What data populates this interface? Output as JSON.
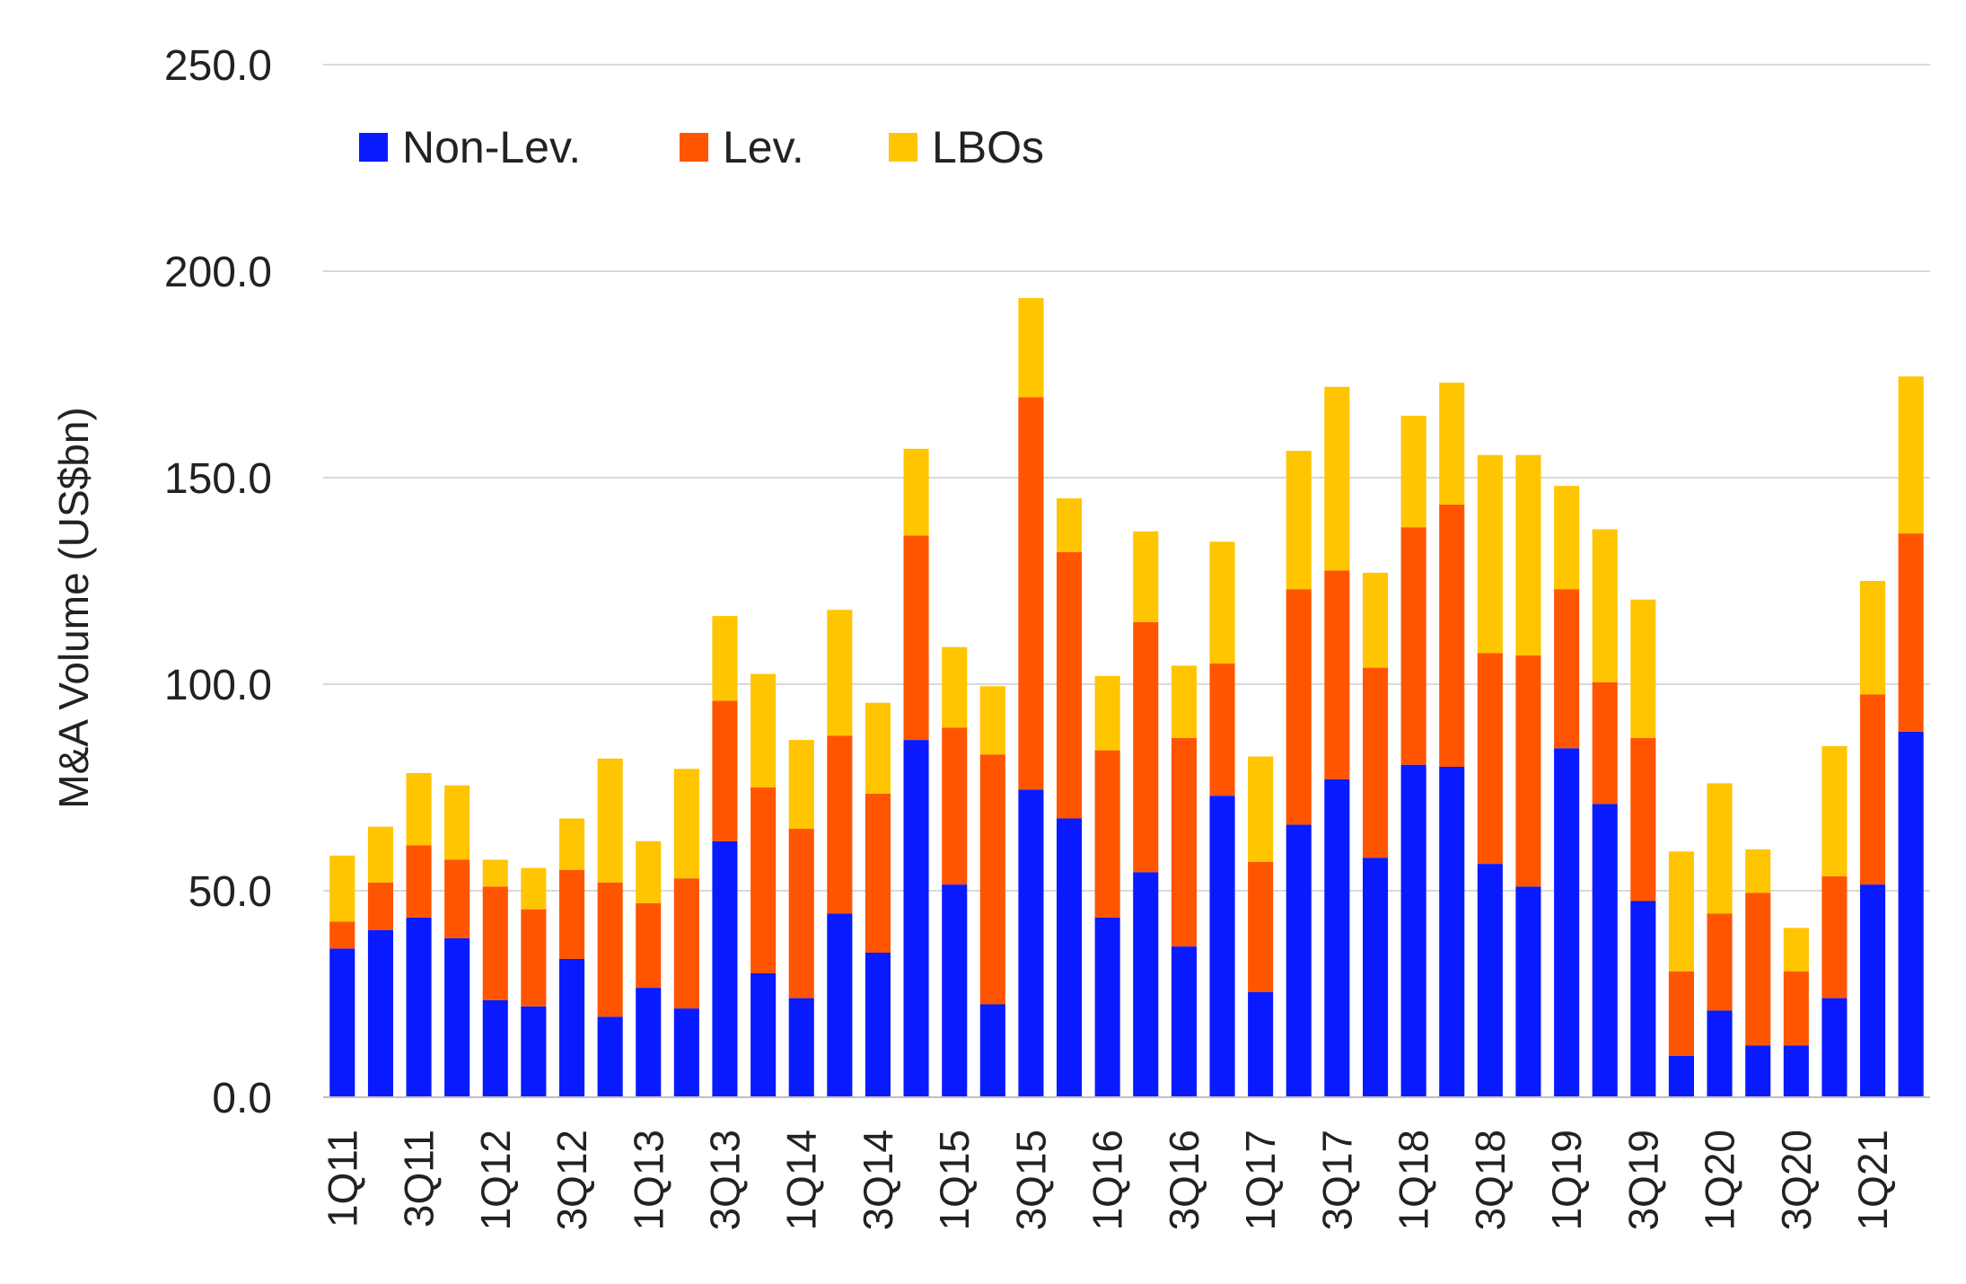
{
  "chart_data": {
    "type": "bar",
    "stacked": true,
    "ylabel": "M&A Volume (US$bn)",
    "ylim": [
      0,
      250
    ],
    "yticks": [
      "0.0",
      "50.0",
      "100.0",
      "150.0",
      "200.0",
      "250.0"
    ],
    "grid": true,
    "legend_position": "top-left",
    "categories": [
      "1Q11",
      "2Q11",
      "3Q11",
      "4Q11",
      "1Q12",
      "2Q12",
      "3Q12",
      "4Q12",
      "1Q13",
      "2Q13",
      "3Q13",
      "4Q13",
      "1Q14",
      "2Q14",
      "3Q14",
      "4Q14",
      "1Q15",
      "2Q15",
      "3Q15",
      "4Q15",
      "1Q16",
      "2Q16",
      "3Q16",
      "4Q16",
      "1Q17",
      "2Q17",
      "3Q17",
      "4Q17",
      "1Q18",
      "2Q18",
      "3Q18",
      "4Q18",
      "1Q19",
      "2Q19",
      "3Q19",
      "4Q19",
      "1Q20",
      "2Q20",
      "3Q20",
      "4Q20",
      "1Q21",
      "2Q21"
    ],
    "tick_labels_shown": [
      "1Q11",
      "3Q11",
      "1Q12",
      "3Q12",
      "1Q13",
      "3Q13",
      "1Q14",
      "3Q14",
      "1Q15",
      "3Q15",
      "1Q16",
      "3Q16",
      "1Q17",
      "3Q17",
      "1Q18",
      "3Q18",
      "1Q19",
      "3Q19",
      "1Q20",
      "3Q20",
      "1Q21"
    ],
    "series": [
      {
        "name": "Non-Lev.",
        "color": "#0a1aff",
        "values": [
          36.0,
          40.5,
          43.5,
          38.5,
          23.5,
          22.0,
          33.5,
          19.5,
          26.5,
          21.5,
          62.0,
          30.0,
          24.0,
          44.5,
          35.0,
          86.5,
          51.5,
          22.5,
          74.5,
          67.5,
          43.5,
          54.5,
          36.5,
          73.0,
          25.5,
          66.0,
          77.0,
          58.0,
          80.5,
          80.0,
          56.5,
          51.0,
          84.5,
          71.0,
          47.5,
          10.0,
          21.0,
          12.5,
          12.5,
          24.0,
          51.5,
          88.5
        ]
      },
      {
        "name": "Lev.",
        "color": "#ff5500",
        "values": [
          6.5,
          11.5,
          17.5,
          19.0,
          27.5,
          23.5,
          21.5,
          32.5,
          20.5,
          31.5,
          34.0,
          45.0,
          41.0,
          43.0,
          38.5,
          49.5,
          38.0,
          60.5,
          95.0,
          64.5,
          40.5,
          60.5,
          50.5,
          32.0,
          31.5,
          57.0,
          50.5,
          46.0,
          57.5,
          63.5,
          51.0,
          56.0,
          38.5,
          29.5,
          39.5,
          20.5,
          23.5,
          37.0,
          18.0,
          29.5,
          46.0,
          48.0
        ]
      },
      {
        "name": "LBOs",
        "color": "#ffc500",
        "values": [
          16.0,
          13.5,
          17.5,
          18.0,
          6.5,
          10.0,
          12.5,
          30.0,
          15.0,
          26.5,
          20.5,
          27.5,
          21.5,
          30.5,
          22.0,
          21.0,
          19.5,
          16.5,
          24.0,
          13.0,
          18.0,
          22.0,
          17.5,
          29.5,
          25.5,
          33.5,
          44.5,
          23.0,
          27.0,
          29.5,
          48.0,
          48.5,
          25.0,
          37.0,
          33.5,
          29.0,
          31.5,
          10.5,
          10.5,
          31.5,
          27.5,
          38.0
        ]
      }
    ]
  }
}
